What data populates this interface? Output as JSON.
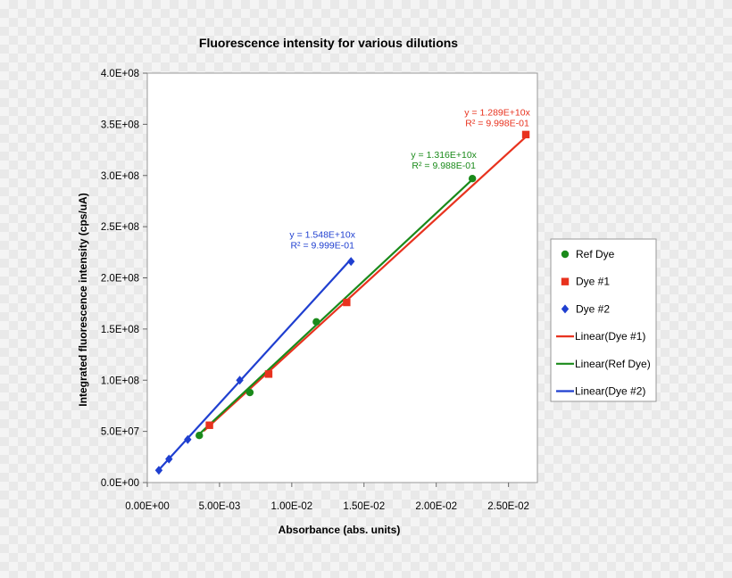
{
  "chart_data": {
    "type": "scatter",
    "title": "Fluorescence intensity for various dilutions",
    "xlabel": "Absorbance (abs. units)",
    "ylabel": "Integrated fluorescence intensity  (cps/uA)",
    "xlim": [
      0,
      0.027
    ],
    "ylim": [
      0,
      400000000
    ],
    "x_ticks": [
      {
        "value": 0,
        "label": "0.00E+00"
      },
      {
        "value": 0.005,
        "label": "5.00E-03"
      },
      {
        "value": 0.01,
        "label": "1.00E-02"
      },
      {
        "value": 0.015,
        "label": "1.50E-02"
      },
      {
        "value": 0.02,
        "label": "2.00E-02"
      },
      {
        "value": 0.025,
        "label": "2.50E-02"
      }
    ],
    "y_ticks": [
      {
        "value": 0,
        "label": "0.0E+00"
      },
      {
        "value": 50000000,
        "label": "5.0E+07"
      },
      {
        "value": 100000000,
        "label": "1.0E+08"
      },
      {
        "value": 150000000,
        "label": "1.5E+08"
      },
      {
        "value": 200000000,
        "label": "2.0E+08"
      },
      {
        "value": 250000000,
        "label": "2.5E+08"
      },
      {
        "value": 300000000,
        "label": "3.0E+08"
      },
      {
        "value": 350000000,
        "label": "3.5E+08"
      },
      {
        "value": 400000000,
        "label": "4.0E+08"
      }
    ],
    "grid": false,
    "legend_position": "right",
    "series": [
      {
        "name": "Ref Dye",
        "marker": "circle",
        "color": "#1a8a1a",
        "points": [
          [
            0.0036,
            46000000
          ],
          [
            0.0071,
            88000000
          ],
          [
            0.0117,
            157000000
          ],
          [
            0.0225,
            297000000
          ]
        ]
      },
      {
        "name": "Dye #1",
        "marker": "square",
        "color": "#e8321e",
        "points": [
          [
            0.0043,
            56000000
          ],
          [
            0.0084,
            106000000
          ],
          [
            0.0138,
            176000000
          ],
          [
            0.0262,
            340000000
          ]
        ]
      },
      {
        "name": "Dye #2",
        "marker": "diamond",
        "color": "#1f3fd0",
        "points": [
          [
            0.0008,
            12000000
          ],
          [
            0.0015,
            23000000
          ],
          [
            0.0028,
            42000000
          ],
          [
            0.0064,
            100000000
          ],
          [
            0.0141,
            216000000
          ]
        ]
      }
    ],
    "trendlines": [
      {
        "name": "Linear(Dye #1)",
        "color": "#e8321e",
        "x_range": [
          0.0039,
          0.0262
        ],
        "equation": "y = 1.289E+10x",
        "r2": "R² = 9.998E-01"
      },
      {
        "name": "Linear(Ref Dye)",
        "color": "#1a8a1a",
        "x_range": [
          0.0036,
          0.0225
        ],
        "equation": "y = 1.316E+10x",
        "r2": "R² = 9.988E-01"
      },
      {
        "name": "Linear(Dye #2)",
        "color": "#1f3fd0",
        "x_range": [
          0.0008,
          0.0141
        ],
        "equation": "y = 1.548E+10x",
        "r2": "R² = 9.999E-01"
      }
    ],
    "legend": [
      {
        "label": "Ref Dye",
        "kind": "marker",
        "marker": "circle",
        "color": "#1a8a1a"
      },
      {
        "label": "Dye #1",
        "kind": "marker",
        "marker": "square",
        "color": "#e8321e"
      },
      {
        "label": "Dye #2",
        "kind": "marker",
        "marker": "diamond",
        "color": "#1f3fd0"
      },
      {
        "label": "Linear(Dye #1)",
        "kind": "line",
        "color": "#e8321e"
      },
      {
        "label": "Linear(Ref Dye)",
        "kind": "line",
        "color": "#1a8a1a"
      },
      {
        "label": "Linear(Dye #2)",
        "kind": "line",
        "color": "#1f3fd0"
      }
    ]
  }
}
